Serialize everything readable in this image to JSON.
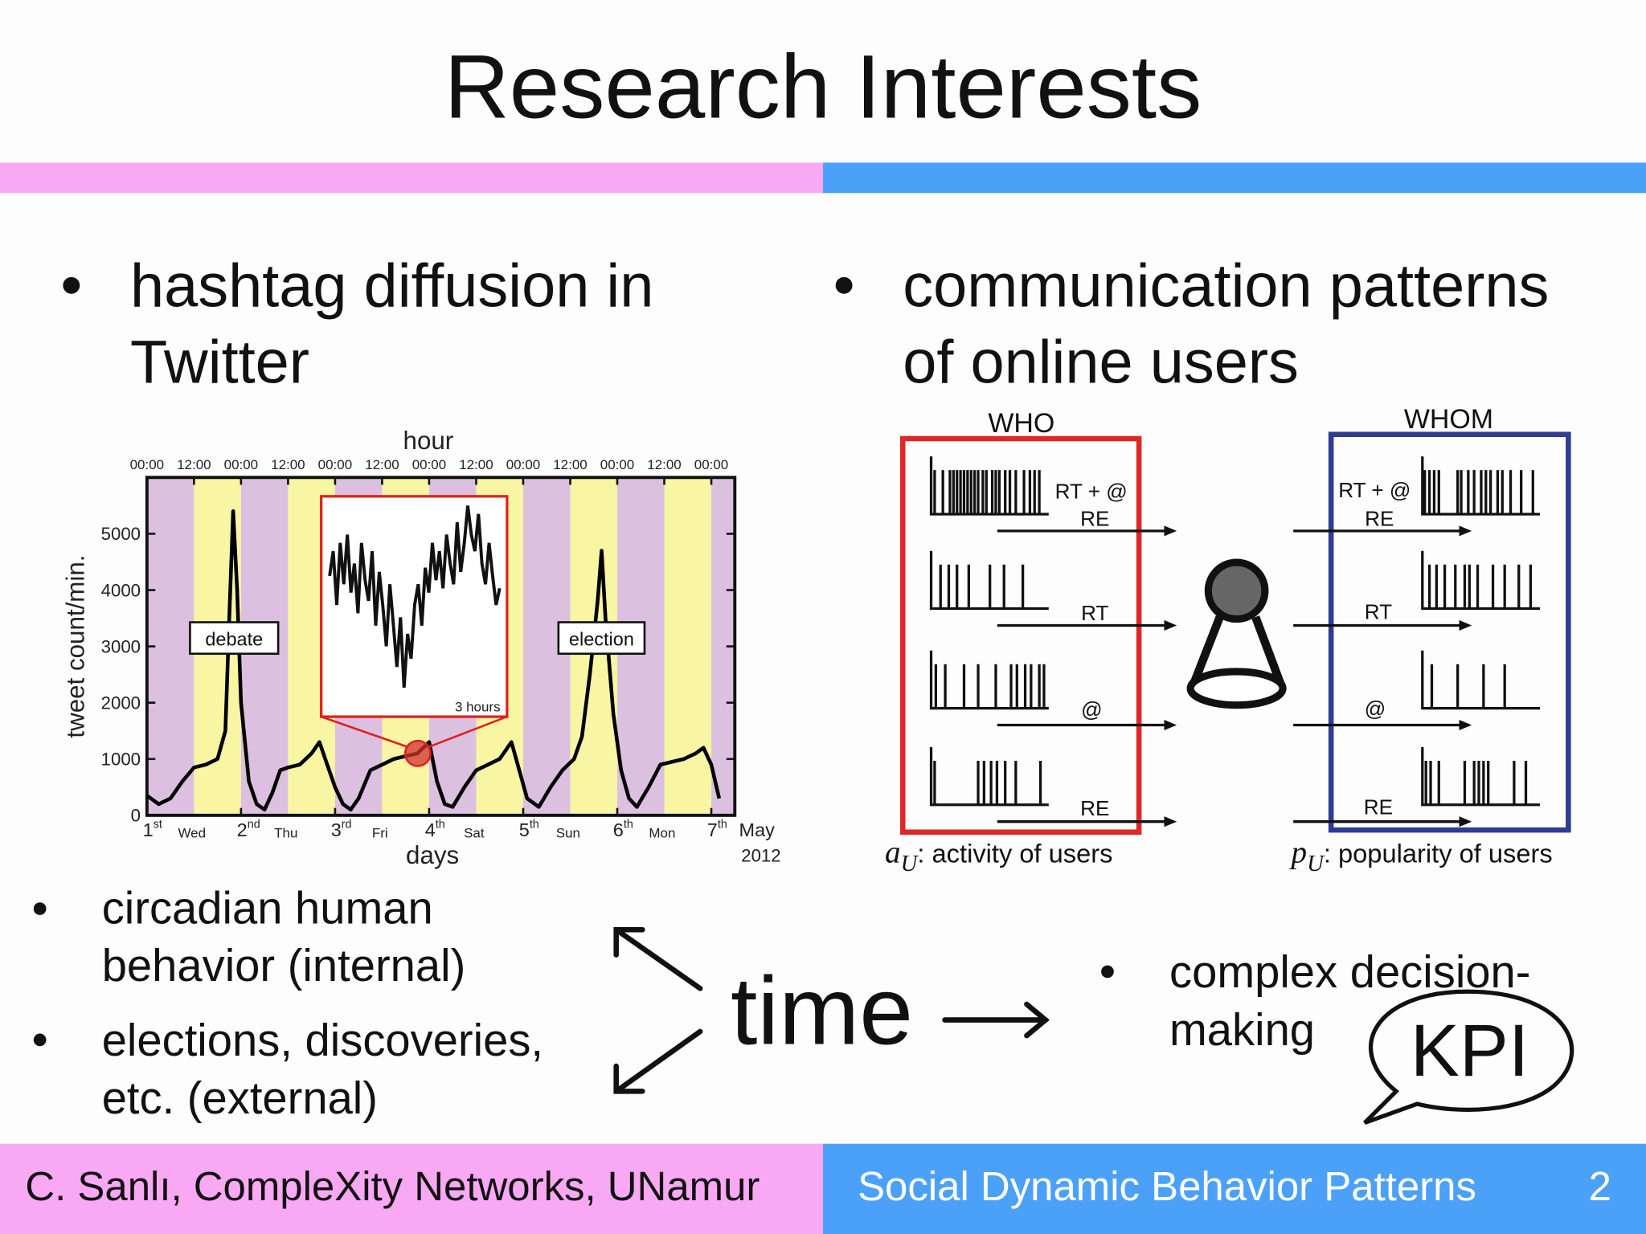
{
  "header": {
    "title": "Research Interests"
  },
  "left": {
    "bullet_lines": [
      "hashtag diffusion in",
      "Twitter"
    ],
    "chart": {
      "type": "line",
      "top_axis_label": "hour",
      "x_label": "days",
      "y_label": "tweet count/min.",
      "xlim": [
        0,
        150
      ],
      "ylim": [
        0,
        6000
      ],
      "yticks": [
        0,
        1000,
        2000,
        3000,
        4000,
        5000
      ],
      "hour_ticks": [
        {
          "value": 0,
          "label": "00:00"
        },
        {
          "value": 12,
          "label": "12:00"
        },
        {
          "value": 24,
          "label": "00:00"
        },
        {
          "value": 36,
          "label": "12:00"
        },
        {
          "value": 48,
          "label": "00:00"
        },
        {
          "value": 60,
          "label": "12:00"
        },
        {
          "value": 72,
          "label": "00:00"
        },
        {
          "value": 84,
          "label": "12:00"
        },
        {
          "value": 96,
          "label": "00:00"
        },
        {
          "value": 108,
          "label": "12:00"
        },
        {
          "value": 120,
          "label": "00:00"
        },
        {
          "value": 132,
          "label": "12:00"
        },
        {
          "value": 144,
          "label": "00:00"
        }
      ],
      "day_ticks": [
        {
          "value": 0,
          "day": "1",
          "suffix": "st"
        },
        {
          "value": 24,
          "day": "2",
          "suffix": "nd"
        },
        {
          "value": 48,
          "day": "3",
          "suffix": "rd"
        },
        {
          "value": 72,
          "day": "4",
          "suffix": "th"
        },
        {
          "value": 96,
          "day": "5",
          "suffix": "th"
        },
        {
          "value": 120,
          "day": "6",
          "suffix": "th"
        },
        {
          "value": 144,
          "day": "7",
          "suffix": "th"
        }
      ],
      "weekday_ticks": [
        {
          "value": 12,
          "label": "Wed"
        },
        {
          "value": 36,
          "label": "Thu"
        },
        {
          "value": 60,
          "label": "Fri"
        },
        {
          "value": 84,
          "label": "Sat"
        },
        {
          "value": 108,
          "label": "Sun"
        },
        {
          "value": 132,
          "label": "Mon"
        }
      ],
      "month": "May",
      "year": "2012",
      "annotations": [
        "debate",
        "election"
      ],
      "color": "#000000",
      "x": [
        0,
        3,
        6,
        9,
        12,
        15,
        18,
        20,
        21,
        22,
        23,
        24,
        26,
        28,
        30,
        32,
        34,
        36,
        39,
        42,
        44,
        46,
        48,
        50,
        52,
        54,
        57,
        60,
        63,
        66,
        69,
        72,
        74,
        76,
        78,
        81,
        84,
        87,
        90,
        93,
        95,
        97,
        100,
        103,
        106,
        109,
        111,
        113,
        115,
        116,
        117,
        119,
        121,
        123,
        125,
        128,
        131,
        134,
        137,
        140,
        142,
        144,
        146
      ],
      "values": [
        350,
        200,
        300,
        600,
        850,
        900,
        1000,
        1500,
        3500,
        5400,
        4000,
        2000,
        600,
        200,
        100,
        400,
        800,
        850,
        900,
        1100,
        1300,
        900,
        500,
        200,
        100,
        300,
        800,
        900,
        1000,
        1050,
        1100,
        1300,
        600,
        200,
        150,
        500,
        800,
        900,
        1000,
        1300,
        800,
        300,
        150,
        500,
        800,
        1000,
        1400,
        2500,
        3800,
        4700,
        3500,
        1800,
        800,
        300,
        150,
        500,
        900,
        950,
        1000,
        1100,
        1200,
        900,
        300
      ],
      "inset": {
        "label": "3 hours",
        "ylim": [
          1000,
          1500
        ],
        "values": [
          1320,
          1380,
          1250,
          1400,
          1300,
          1420,
          1280,
          1350,
          1230,
          1400,
          1310,
          1260,
          1380,
          1200,
          1330,
          1250,
          1150,
          1300,
          1200,
          1100,
          1220,
          1050,
          1180,
          1120,
          1250,
          1300,
          1200,
          1340,
          1280,
          1400,
          1310,
          1380,
          1290,
          1420,
          1350,
          1300,
          1450,
          1330,
          1400,
          1490,
          1420,
          1380,
          1470,
          1350,
          1300,
          1400,
          1320,
          1250,
          1290
        ]
      }
    },
    "points": [
      [
        "circadian human",
        "behavior (internal)"
      ],
      [
        "elections, discoveries,",
        "etc. (external)"
      ]
    ]
  },
  "right": {
    "bullet_lines": [
      "communication patterns",
      "of online users"
    ],
    "who": "WHO",
    "whom": "WHOM",
    "who_labels": [
      [
        "RT + @",
        "RE"
      ],
      [
        "RT"
      ],
      [
        "@"
      ],
      [
        "RE"
      ]
    ],
    "whom_labels": [
      [
        "RT + @",
        "RE"
      ],
      [
        "RT"
      ],
      [
        "@"
      ],
      [
        "RE"
      ]
    ],
    "activity": {
      "symbol": "a",
      "sub": "U",
      "text": ": activity of users"
    },
    "popularity": {
      "symbol": "p",
      "sub": "U",
      "text": ": popularity of users"
    },
    "point_lines": [
      "complex decision-",
      "making"
    ],
    "kpi": "KPI"
  },
  "center": {
    "time": "time"
  },
  "footer": {
    "left": "C. Sanlı, CompleXity Networks, UNamur",
    "right": "Social Dynamic Behavior Patterns",
    "page": 2
  }
}
